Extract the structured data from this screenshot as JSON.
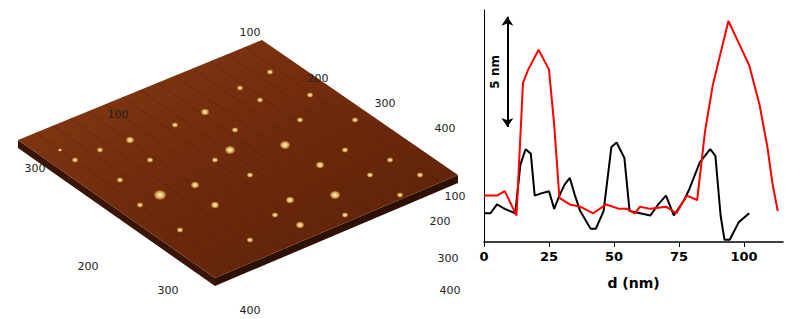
{
  "chart_data": {
    "type": "line",
    "xlabel": "d (nm)",
    "xlim": [
      0,
      115
    ],
    "xticks": [
      0,
      25,
      50,
      75,
      100
    ],
    "ylim": [
      0,
      10.5
    ],
    "yticks": [],
    "tick_labels": "x",
    "grid": false,
    "scale_bar": {
      "value": 5,
      "label": "5 nm"
    },
    "series": [
      {
        "color": "#ff0000",
        "x": [
          0,
          5,
          8,
          12.5,
          15,
          17,
          21,
          25,
          27,
          29,
          33,
          37,
          42,
          47,
          52,
          55,
          58,
          60,
          64,
          70,
          74,
          78,
          82,
          85,
          88,
          94,
          98,
          102,
          106,
          109,
          111,
          113
        ],
        "values": [
          2.1,
          2.1,
          2.3,
          1.2,
          7.2,
          7.8,
          8.7,
          7.8,
          5.3,
          2.0,
          1.7,
          1.6,
          1.3,
          1.7,
          1.5,
          1.5,
          1.3,
          1.6,
          1.5,
          1.6,
          1.3,
          2.1,
          1.9,
          5.0,
          7.1,
          10.0,
          9.0,
          8.0,
          6.2,
          4.3,
          2.6,
          1.4
        ]
      },
      {
        "color": "#000000",
        "x": [
          0,
          2.5,
          5,
          8,
          12,
          14,
          16,
          18,
          19.5,
          22,
          25,
          27,
          29,
          31,
          33,
          35,
          37,
          41,
          43,
          46,
          49,
          51,
          54,
          56,
          60,
          64,
          67,
          70,
          73,
          77,
          79,
          83,
          87,
          89,
          91,
          92.5,
          94.5,
          98,
          102
        ],
        "values": [
          1.3,
          1.3,
          1.7,
          1.5,
          1.3,
          3.5,
          4.2,
          4.0,
          2.1,
          2.2,
          2.3,
          1.5,
          2.1,
          2.6,
          2.9,
          2.1,
          1.4,
          0.6,
          0.6,
          1.4,
          4.3,
          4.5,
          3.8,
          1.4,
          1.3,
          1.2,
          1.7,
          2.1,
          1.2,
          1.9,
          2.4,
          3.6,
          4.2,
          3.9,
          1.2,
          0.1,
          0.1,
          0.9,
          1.3
        ]
      }
    ]
  },
  "afm_image": {
    "back_right_axis": [
      100,
      200,
      300,
      400
    ],
    "back_left_axis": [
      100,
      300
    ],
    "front_left_axis": [
      200,
      300,
      400
    ],
    "front_right_axis": [
      100,
      200,
      300,
      400
    ]
  }
}
